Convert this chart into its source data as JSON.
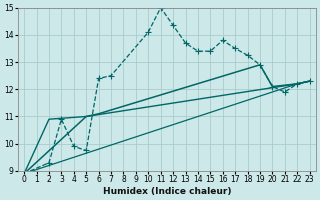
{
  "xlabel": "Humidex (Indice chaleur)",
  "bg_color": "#cce8e8",
  "grid_color": "#aacccc",
  "line_color": "#006666",
  "xlim": [
    -0.5,
    23.5
  ],
  "ylim": [
    9,
    15
  ],
  "xticks": [
    0,
    1,
    2,
    3,
    4,
    5,
    6,
    7,
    8,
    9,
    10,
    11,
    12,
    13,
    14,
    15,
    16,
    17,
    18,
    19,
    20,
    21,
    22,
    23
  ],
  "yticks": [
    9,
    10,
    11,
    12,
    13,
    14,
    15
  ],
  "series": [
    {
      "x": [
        0,
        2,
        3,
        4,
        5,
        6,
        7,
        10,
        11,
        12,
        13,
        14,
        15,
        16,
        17,
        18,
        19,
        20,
        21,
        22,
        23
      ],
      "y": [
        8.9,
        9.3,
        10.9,
        9.9,
        9.75,
        12.4,
        12.5,
        14.1,
        15.0,
        14.35,
        13.7,
        13.4,
        13.4,
        13.8,
        13.5,
        13.25,
        12.9,
        12.1,
        11.9,
        12.2,
        12.3
      ],
      "marker": "+",
      "ms": 4,
      "lw": 0.9,
      "ls": "--"
    },
    {
      "x": [
        0,
        5,
        6,
        19,
        20,
        22,
        23
      ],
      "y": [
        8.9,
        11.0,
        11.1,
        12.9,
        12.1,
        12.2,
        12.3
      ],
      "marker": null,
      "ms": 0,
      "lw": 1.1,
      "ls": "-"
    },
    {
      "x": [
        0,
        2,
        5,
        22,
        23
      ],
      "y": [
        8.9,
        10.9,
        11.0,
        12.2,
        12.3
      ],
      "marker": null,
      "ms": 0,
      "lw": 1.0,
      "ls": "-"
    },
    {
      "x": [
        0,
        22,
        23
      ],
      "y": [
        8.9,
        12.2,
        12.3
      ],
      "marker": null,
      "ms": 0,
      "lw": 0.9,
      "ls": "-"
    }
  ]
}
